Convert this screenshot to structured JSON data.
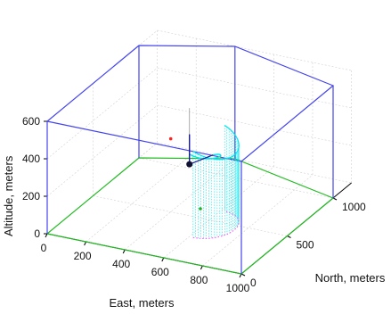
{
  "chart_data": {
    "type": "3d-trajectory",
    "title": "",
    "xlabel": "East, meters",
    "ylabel": "North, meters",
    "zlabel": "Altitude, meters",
    "xlim": [
      0,
      1000
    ],
    "ylim": [
      0,
      1200
    ],
    "zlim": [
      0,
      600
    ],
    "x_ticks": [
      0,
      200,
      400,
      600,
      800,
      1000
    ],
    "y_ticks": [
      0,
      500,
      1000
    ],
    "z_ticks": [
      0,
      200,
      400,
      600
    ],
    "grid": true,
    "floor_polygon_green": [
      [
        0,
        0,
        0
      ],
      [
        1000,
        0,
        0
      ],
      [
        1000,
        1000,
        0
      ],
      [
        400,
        1200,
        0
      ],
      [
        0,
        1000,
        0
      ]
    ],
    "prism_polygon_blue_height": 600,
    "prism_polygon_blue": [
      [
        0,
        0
      ],
      [
        1000,
        0
      ],
      [
        1000,
        1000
      ],
      [
        400,
        1200
      ],
      [
        0,
        1000
      ]
    ],
    "arc": {
      "center": [
        620,
        450
      ],
      "radius": 110,
      "top_altitude": 460,
      "bottom_altitude": 0,
      "colors": {
        "arc": "#00e5ee",
        "projection": "#ff44ff"
      }
    },
    "vehicle_point": [
      520,
      450,
      300
    ],
    "vertical_marker": {
      "x": 520,
      "y": 450,
      "z_from": 300,
      "z_to": 600
    },
    "markers": [
      {
        "name": "red-point",
        "x": 400,
        "y": 500,
        "z": 390,
        "color": "#ff2020"
      },
      {
        "name": "green-point",
        "x": 600,
        "y": 400,
        "z": 100,
        "color": "#20b020"
      }
    ],
    "colors": {
      "floor": "#22bb22",
      "prism": "#4444ee",
      "grid": "#d0d0d0",
      "axes": "#000000"
    }
  }
}
